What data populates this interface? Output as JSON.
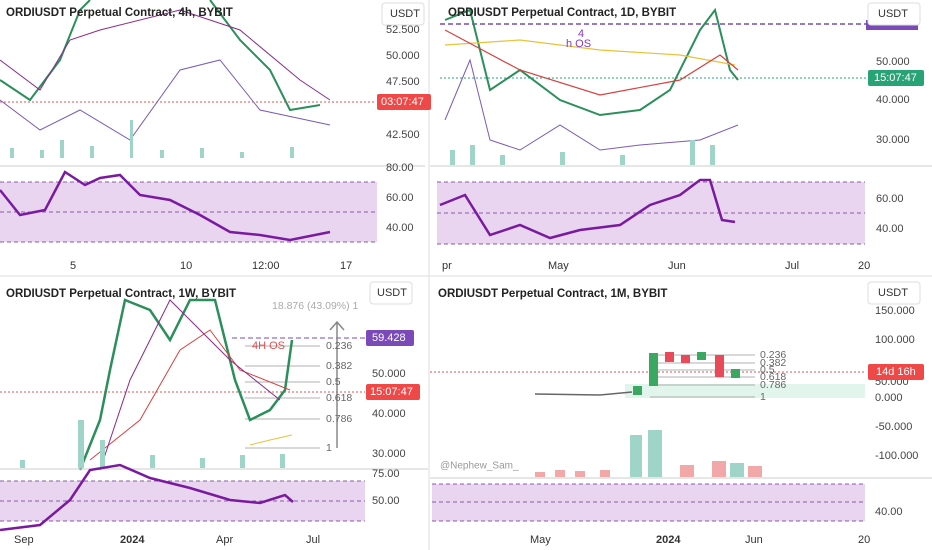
{
  "panels": [
    {
      "title": "ORDIUSDT Perpetual Contract, 4h, BYBIT",
      "currency": "USDT",
      "price_ticks": [
        "52.500",
        "50.000",
        "47.500",
        "42.500"
      ],
      "price_tag": "03:07:47",
      "rsi_ticks": [
        "80.00",
        "60.00",
        "40.00"
      ],
      "time_ticks": [
        "5",
        "10",
        "12:00",
        "17"
      ]
    },
    {
      "title": "ORDIUSDT Perpetual Contract, 1D, BYBIT",
      "currency": "USDT",
      "annotation": [
        "4",
        "h OS"
      ],
      "price_ticks": [
        "50.000",
        "40.000",
        "30.000"
      ],
      "price_tag": "15:07:47",
      "rsi_ticks": [
        "60.00",
        "40.00"
      ],
      "time_ticks": [
        "pr",
        "May",
        "Jun",
        "Jul",
        "20"
      ]
    },
    {
      "title": "ORDIUSDT Perpetual Contract, 1W, BYBIT",
      "currency": "USDT",
      "measure": "18.876 (43.09%) 1",
      "annotation": "4H OS",
      "fib_levels": [
        "0.236",
        "0.382",
        "0.5",
        "0.618",
        "0.786",
        "1"
      ],
      "price_ticks": [
        "50.000",
        "40.000",
        "30.000"
      ],
      "price_tags": [
        "59.428",
        "15:07:47"
      ],
      "rsi_ticks": [
        "75.00",
        "50.00"
      ],
      "time_ticks": [
        "Sep",
        "2024",
        "Apr",
        "Jul"
      ]
    },
    {
      "title": "ORDIUSDT Perpetual Contract, 1M, BYBIT",
      "currency": "USDT",
      "watermark": "@Nephew_Sam_",
      "fib_levels": [
        "0.236",
        "0.382",
        "0.5",
        "0.618",
        "0.786",
        "1"
      ],
      "price_ticks": [
        "150.000",
        "100.000",
        "50.000",
        "0.000",
        "-50.000",
        "-100.000"
      ],
      "price_tag": "14d 16h",
      "rsi_ticks": [
        "40.00"
      ],
      "time_ticks": [
        "May",
        "2024",
        "Jun",
        "20"
      ]
    }
  ]
}
